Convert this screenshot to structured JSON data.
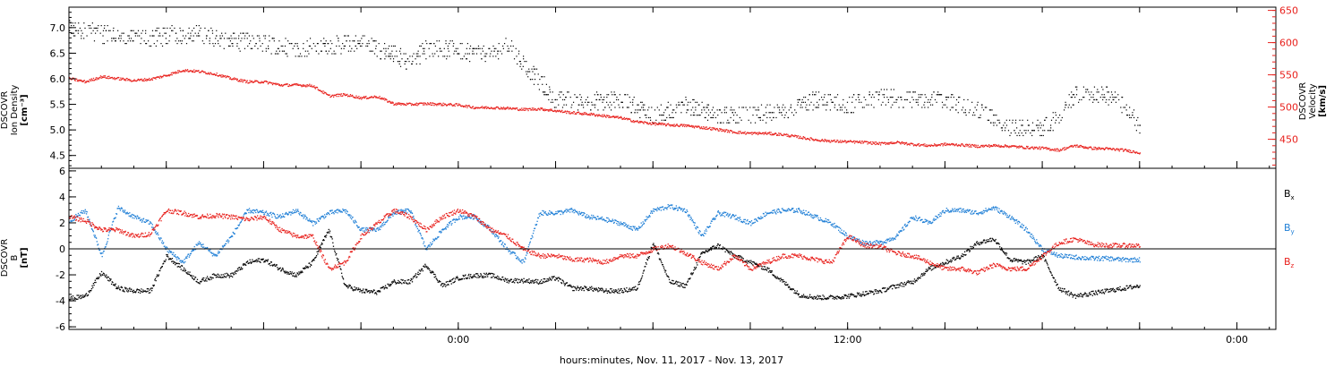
{
  "chart_data": {
    "type": "scatter",
    "xlabel": "hours:minutes, Nov. 11, 2017 - Nov. 13, 2017",
    "x_unit": "hours since 2017-11-11 12:00",
    "xlim": [
      0,
      37.2
    ],
    "x_ticks": [
      {
        "x": 3,
        "label": ""
      },
      {
        "x": 6,
        "label": ""
      },
      {
        "x": 9,
        "label": ""
      },
      {
        "x": 12,
        "label": "0:00"
      },
      {
        "x": 15,
        "label": ""
      },
      {
        "x": 18,
        "label": ""
      },
      {
        "x": 21,
        "label": ""
      },
      {
        "x": 24,
        "label": "12:00"
      },
      {
        "x": 27,
        "label": ""
      },
      {
        "x": 30,
        "label": ""
      },
      {
        "x": 33,
        "label": ""
      },
      {
        "x": 36,
        "label": "0:00"
      }
    ],
    "panels": [
      {
        "name": "density-velocity",
        "y_title_lines": [
          "DSCOVR",
          "Ion Density",
          "[cm⁻³]"
        ],
        "ylim": [
          4.25,
          7.4
        ],
        "y_ticks": [
          4.5,
          5.0,
          5.5,
          6.0,
          6.5,
          7.0
        ],
        "y2_title_lines": [
          "DSCOVR",
          "Velocity",
          "[km/s]"
        ],
        "y2lim": [
          405,
          655
        ],
        "y2_ticks": [
          450,
          500,
          550,
          600,
          650
        ],
        "series": [
          {
            "name": "",
            "axis": "left",
            "color": "#000000",
            "style": "dots-scattered",
            "x": [
              0,
              1,
              2,
              3,
              4,
              5,
              6,
              7,
              8,
              9,
              10,
              10.5,
              11,
              12,
              13,
              13.5,
              14,
              15,
              16,
              17,
              18,
              19,
              20,
              21,
              22,
              23,
              24,
              25,
              26,
              27,
              28,
              29,
              30,
              30.5,
              31,
              32,
              32.5,
              33
            ],
            "y": [
              7.0,
              6.9,
              6.8,
              6.85,
              6.9,
              6.75,
              6.7,
              6.6,
              6.65,
              6.7,
              6.5,
              6.3,
              6.6,
              6.55,
              6.5,
              6.7,
              6.3,
              5.6,
              5.55,
              5.6,
              5.3,
              5.5,
              5.3,
              5.3,
              5.35,
              5.6,
              5.5,
              5.65,
              5.6,
              5.6,
              5.4,
              5.05,
              5.05,
              5.25,
              5.7,
              5.7,
              5.45,
              5.1
            ]
          },
          {
            "name": "",
            "axis": "right",
            "color": "#e8201c",
            "style": "dots-line",
            "x": [
              0,
              0.5,
              1,
              1.5,
              2,
              2.5,
              3,
              3.5,
              4,
              4.5,
              5,
              5.5,
              6,
              6.5,
              7,
              7.5,
              8,
              8.5,
              9,
              9.5,
              10,
              10.5,
              11,
              11.5,
              12,
              12.5,
              13,
              13.5,
              14,
              14.5,
              15,
              15.5,
              16,
              16.5,
              17,
              17.5,
              18,
              18.5,
              19,
              19.5,
              20,
              20.5,
              21,
              21.5,
              22,
              22.5,
              23,
              23.5,
              24,
              24.5,
              25,
              25.5,
              26,
              26.5,
              27,
              27.5,
              28,
              28.5,
              29,
              29.5,
              30,
              30.5,
              31,
              31.5,
              32,
              32.5,
              33
            ],
            "y": [
              545,
              540,
              548,
              545,
              542,
              544,
              550,
              558,
              556,
              552,
              545,
              540,
              540,
              535,
              535,
              534,
              518,
              520,
              515,
              517,
              506,
              505,
              506,
              505,
              504,
              500,
              500,
              499,
              497,
              498,
              495,
              492,
              490,
              487,
              484,
              478,
              475,
              473,
              472,
              469,
              466,
              462,
              460,
              460,
              458,
              454,
              450,
              448,
              447,
              446,
              444,
              446,
              443,
              441,
              443,
              442,
              440,
              441,
              440,
              438,
              437,
              434,
              441,
              437,
              436,
              434,
              430
            ]
          }
        ]
      },
      {
        "name": "magnetic-field",
        "y_title_lines": [
          "DSCOVR",
          "B",
          "[nT]"
        ],
        "ylim": [
          -6.2,
          6.2
        ],
        "y_ticks": [
          -6,
          -4,
          -2,
          0,
          2,
          4,
          6
        ],
        "zero_line": true,
        "legend_position": "right",
        "series": [
          {
            "name": "Bx",
            "color": "#000000",
            "x": [
              0,
              0.5,
              1,
              1.5,
              2,
              2.5,
              3,
              3.5,
              4,
              4.5,
              5,
              5.5,
              6,
              6.5,
              7,
              7.5,
              8,
              8.5,
              9,
              9.5,
              10,
              10.5,
              11,
              11.5,
              12,
              12.5,
              13,
              13.5,
              14,
              14.5,
              15,
              15.5,
              16,
              16.5,
              17,
              17.5,
              18,
              18.5,
              19,
              19.5,
              20,
              20.5,
              21,
              21.5,
              22,
              22.5,
              23,
              23.5,
              24,
              24.5,
              25,
              25.5,
              26,
              26.5,
              27,
              27.5,
              28,
              28.5,
              29,
              29.5,
              30,
              30.5,
              31,
              31.5,
              32,
              32.5,
              33
            ],
            "y": [
              -3.8,
              -3.6,
              -1.8,
              -3.0,
              -3.2,
              -3.2,
              -0.5,
              -1.5,
              -2.5,
              -2.0,
              -2.0,
              -1.0,
              -0.8,
              -1.5,
              -2.0,
              -1.0,
              1.5,
              -2.8,
              -3.2,
              -3.3,
              -2.5,
              -2.5,
              -1.2,
              -2.8,
              -2.2,
              -2.0,
              -2.0,
              -2.4,
              -2.4,
              -2.5,
              -2.2,
              -3.0,
              -3.0,
              -3.2,
              -3.2,
              -3.0,
              0.5,
              -2.5,
              -2.8,
              -0.3,
              0.3,
              -0.5,
              -1.0,
              -1.5,
              -2.5,
              -3.5,
              -3.7,
              -3.7,
              -3.6,
              -3.4,
              -3.2,
              -2.8,
              -2.5,
              -1.5,
              -1.0,
              -0.5,
              0.5,
              0.8,
              -0.8,
              -1.0,
              -0.5,
              -3.0,
              -3.6,
              -3.4,
              -3.2,
              -3.0,
              -2.8
            ]
          },
          {
            "name": "By",
            "color": "#1f7fd6",
            "x": [
              0,
              0.5,
              1,
              1.5,
              2,
              2.5,
              3,
              3.5,
              4,
              4.5,
              5,
              5.5,
              6,
              6.5,
              7,
              7.5,
              8,
              8.5,
              9,
              9.5,
              10,
              10.5,
              11,
              11.5,
              12,
              12.5,
              13,
              13.5,
              14,
              14.5,
              15,
              15.5,
              16,
              16.5,
              17,
              17.5,
              18,
              18.5,
              19,
              19.5,
              20,
              20.5,
              21,
              21.5,
              22,
              22.5,
              23,
              23.5,
              24,
              24.5,
              25,
              25.5,
              26,
              26.5,
              27,
              27.5,
              28,
              28.5,
              29,
              29.5,
              30,
              30.5,
              31,
              31.5,
              32,
              32.5,
              33
            ],
            "y": [
              2.2,
              3.0,
              -0.5,
              3.2,
              2.5,
              2.0,
              0.0,
              -1.0,
              0.5,
              -0.5,
              1.0,
              3.0,
              2.8,
              2.5,
              3.0,
              2.0,
              2.8,
              3.0,
              1.5,
              1.5,
              2.8,
              3.0,
              0.0,
              1.5,
              2.5,
              2.5,
              1.5,
              0.0,
              -1.0,
              2.8,
              2.8,
              3.0,
              2.5,
              2.3,
              2.0,
              1.5,
              3.0,
              3.3,
              3.0,
              1.0,
              2.8,
              2.5,
              2.0,
              2.8,
              3.0,
              3.0,
              2.5,
              2.0,
              1.0,
              0.5,
              0.5,
              1.0,
              2.5,
              2.0,
              3.0,
              3.0,
              2.8,
              3.2,
              2.5,
              1.5,
              0.0,
              -0.5,
              -0.6,
              -0.7,
              -0.7,
              -0.8,
              -0.8
            ]
          },
          {
            "name": "Bz",
            "color": "#e8201c",
            "x": [
              0,
              0.5,
              1,
              1.5,
              2,
              2.5,
              3,
              3.5,
              4,
              4.5,
              5,
              5.5,
              6,
              6.5,
              7,
              7.5,
              8,
              8.5,
              9,
              9.5,
              10,
              10.5,
              11,
              11.5,
              12,
              12.5,
              13,
              13.5,
              14,
              14.5,
              15,
              15.5,
              16,
              16.5,
              17,
              17.5,
              18,
              18.5,
              19,
              19.5,
              20,
              20.5,
              21,
              21.5,
              22,
              22.5,
              23,
              23.5,
              24,
              24.5,
              25,
              25.5,
              26,
              26.5,
              27,
              27.5,
              28,
              28.5,
              29,
              29.5,
              30,
              30.5,
              31,
              31.5,
              32,
              32.5,
              33
            ],
            "y": [
              2.5,
              2.2,
              1.5,
              1.5,
              1.0,
              1.2,
              3.0,
              2.8,
              2.5,
              2.6,
              2.5,
              2.3,
              2.5,
              1.5,
              1.0,
              1.0,
              -1.5,
              -1.0,
              1.0,
              2.0,
              3.0,
              2.5,
              1.5,
              2.5,
              3.0,
              2.5,
              1.5,
              1.0,
              0.0,
              -0.5,
              -0.5,
              -0.8,
              -0.8,
              -1.0,
              -0.5,
              -0.5,
              0.0,
              0.3,
              -0.3,
              -1.0,
              -1.5,
              -0.5,
              -1.5,
              -1.0,
              -0.5,
              -0.5,
              -0.8,
              -1.0,
              1.0,
              0.3,
              0.2,
              -0.3,
              -0.5,
              -1.0,
              -1.5,
              -1.5,
              -1.8,
              -1.2,
              -1.5,
              -1.5,
              -0.5,
              0.5,
              0.8,
              0.4,
              0.3,
              0.3,
              0.3
            ]
          }
        ]
      }
    ]
  }
}
